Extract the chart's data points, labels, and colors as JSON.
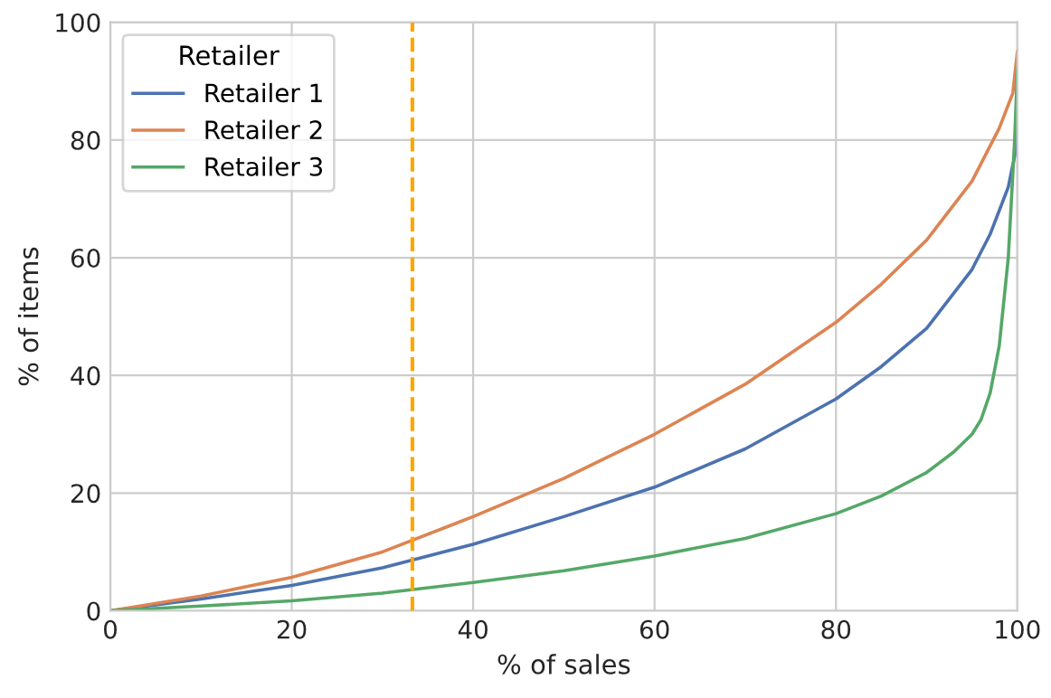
{
  "chart_data": {
    "type": "line",
    "xlabel": "% of sales",
    "ylabel": "% of items",
    "legend_title": "Retailer",
    "legend": "top left",
    "grid": true,
    "xlim": [
      0,
      100
    ],
    "ylim": [
      0,
      100
    ],
    "xticks": [
      0,
      20,
      40,
      60,
      80,
      100
    ],
    "yticks": [
      0,
      20,
      40,
      60,
      80,
      100
    ],
    "series": [
      {
        "name": "Retailer 1",
        "color": "#4c72b0",
        "x": [
          0,
          10,
          20,
          30,
          40,
          50,
          60,
          70,
          80,
          85,
          90,
          95,
          97,
          99,
          99.8,
          100
        ],
        "values": [
          0,
          2,
          4.3,
          7.3,
          11.3,
          16,
          21,
          27.5,
          36,
          41.5,
          48,
          58,
          64,
          72,
          78,
          91
        ]
      },
      {
        "name": "Retailer 2",
        "color": "#dd8452",
        "x": [
          0,
          10,
          20,
          30,
          40,
          50,
          60,
          70,
          80,
          85,
          90,
          95,
          98,
          99.5,
          100
        ],
        "values": [
          0,
          2.5,
          5.7,
          10,
          16,
          22.5,
          30,
          38.5,
          49,
          55.5,
          63,
          73,
          82,
          88,
          95
        ]
      },
      {
        "name": "Retailer 3",
        "color": "#55a868",
        "x": [
          0,
          10,
          20,
          30,
          40,
          50,
          60,
          70,
          80,
          85,
          90,
          93,
          95,
          96,
          97,
          98,
          99,
          99.7,
          100
        ],
        "values": [
          0,
          0.8,
          1.7,
          3,
          4.8,
          6.8,
          9.3,
          12.3,
          16.5,
          19.5,
          23.5,
          27,
          30,
          32.5,
          37,
          45,
          60,
          80,
          92
        ]
      }
    ],
    "ref_lines": [
      {
        "axis": "x",
        "value": 33.3,
        "color": "#ffa500",
        "line_style": "dashed"
      }
    ]
  }
}
